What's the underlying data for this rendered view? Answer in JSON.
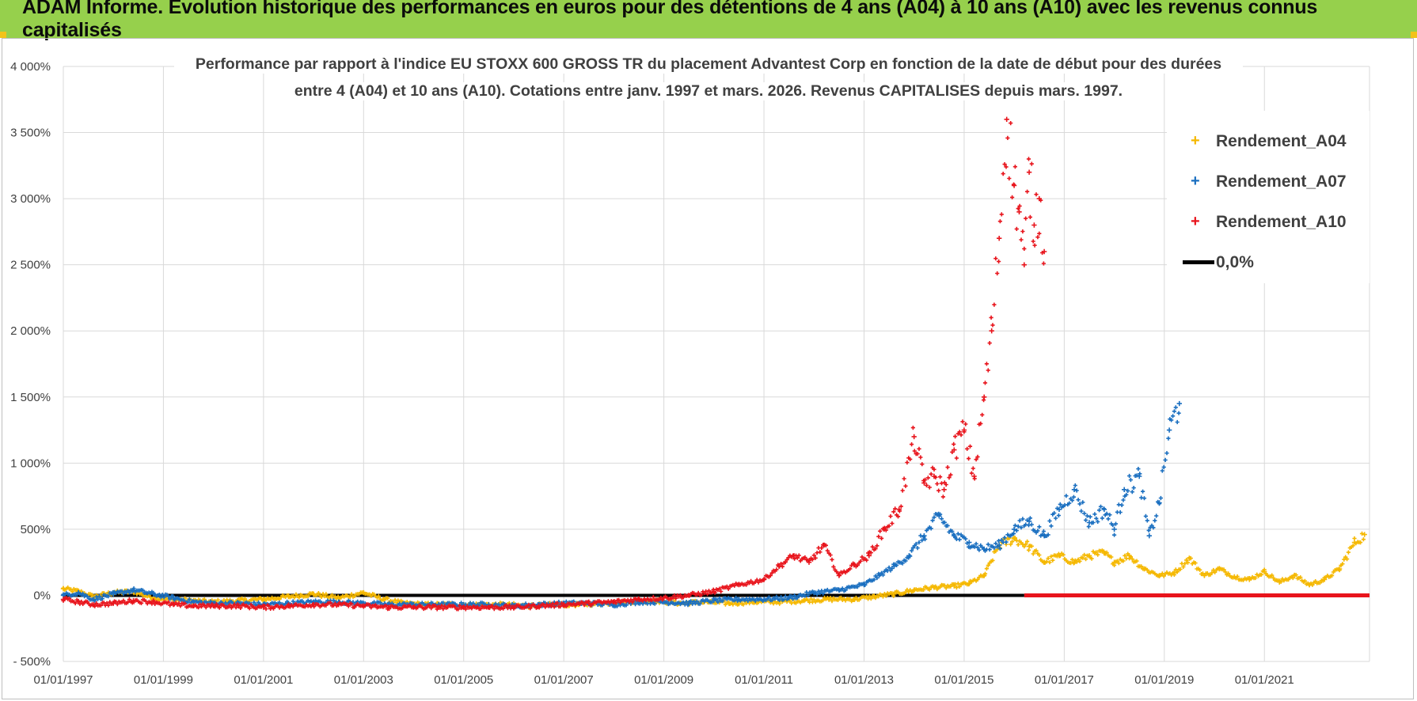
{
  "banner": {
    "title": "ADAM Informe. Evolution historique des performances en euros pour des détentions de 4 ans (A04) à 10 ans (A10) avec les revenus connus capitalisés"
  },
  "colors": {
    "banner_bg": "#96d04c",
    "A04": "#f5b800",
    "A07": "#1a6fc0",
    "A10": "#e8141c",
    "zero_line": "#000000",
    "grid": "#d9d9d9",
    "axis_text": "#404040"
  },
  "chart_data": {
    "type": "scatter",
    "title_line_1": "Performance par rapport à l'indice EU STOXX 600 GROSS TR  du placement Advantest Corp en fonction de la date de début pour des durées",
    "title_line_2": "entre 4 (A04) et 10 ans (A10).  Cotations entre janv. 1997 et mars. 2026.  Revenus CAPITALISES depuis mars. 1997.",
    "xlabel": "",
    "ylabel": "",
    "x_range": [
      1997.0,
      2023.1
    ],
    "ylim": [
      -500,
      4000
    ],
    "y_ticks": [
      -500,
      0,
      500,
      1000,
      1500,
      2000,
      2500,
      3000,
      3500,
      4000
    ],
    "y_tick_labels": [
      "- 500%",
      "0%",
      "500%",
      "1 000%",
      "1 500%",
      "2 000%",
      "2 500%",
      "3 000%",
      "3 500%",
      "4 000%"
    ],
    "x_ticks": [
      1997,
      1999,
      2001,
      2003,
      2005,
      2007,
      2009,
      2011,
      2013,
      2015,
      2017,
      2019,
      2021
    ],
    "x_tick_labels": [
      "01/01/1997",
      "01/01/1999",
      "01/01/2001",
      "01/01/2003",
      "01/01/2005",
      "01/01/2007",
      "01/01/2009",
      "01/01/2011",
      "01/01/2013",
      "01/01/2015",
      "01/01/2017",
      "01/01/2019",
      "01/01/2021"
    ],
    "grid": true,
    "legend_position": "top-right",
    "series": [
      {
        "name": "Rendement_A04",
        "marker": "plus",
        "x": [
          1997.0,
          1997.3,
          1997.6,
          1998.0,
          1998.4,
          1998.8,
          1999.2,
          1999.6,
          2000.0,
          2000.5,
          2001.0,
          2001.5,
          2002.0,
          2002.5,
          2003.0,
          2003.4,
          2003.8,
          2004.3,
          2004.8,
          2005.3,
          2005.8,
          2006.3,
          2006.8,
          2007.3,
          2007.8,
          2008.3,
          2008.8,
          2009.3,
          2009.8,
          2010.3,
          2010.8,
          2011.3,
          2011.8,
          2012.3,
          2012.8,
          2013.2,
          2013.6,
          2014.0,
          2014.4,
          2014.8,
          2015.1,
          2015.4,
          2015.7,
          2016.0,
          2016.3,
          2016.6,
          2016.9,
          2017.2,
          2017.5,
          2017.8,
          2018.0,
          2018.3,
          2018.6,
          2018.9,
          2019.2,
          2019.5,
          2019.8,
          2020.1,
          2020.4,
          2020.7,
          2021.0,
          2021.3,
          2021.6,
          2021.9,
          2022.2,
          2022.5,
          2022.8,
          2023.0
        ],
        "y": [
          50,
          30,
          -10,
          20,
          30,
          -20,
          -30,
          -40,
          -50,
          -40,
          -30,
          -10,
          10,
          -20,
          20,
          -30,
          -60,
          -70,
          -70,
          -70,
          -70,
          -80,
          -70,
          -70,
          -60,
          -50,
          -40,
          -60,
          -50,
          -60,
          -50,
          -50,
          -40,
          -30,
          -30,
          -10,
          10,
          40,
          60,
          70,
          90,
          150,
          380,
          430,
          370,
          250,
          300,
          250,
          300,
          320,
          250,
          300,
          200,
          150,
          170,
          280,
          150,
          200,
          140,
          120,
          180,
          100,
          150,
          80,
          120,
          200,
          400,
          460
        ]
      },
      {
        "name": "Rendement_A07",
        "marker": "plus",
        "x": [
          1997.0,
          1997.3,
          1997.6,
          1998.0,
          1998.4,
          1998.8,
          1999.2,
          1999.6,
          2000.0,
          2000.5,
          2001.0,
          2001.5,
          2002.0,
          2002.5,
          2003.0,
          2003.5,
          2004.0,
          2004.5,
          2005.0,
          2005.5,
          2006.0,
          2006.5,
          2007.0,
          2007.5,
          2008.0,
          2008.5,
          2009.0,
          2009.5,
          2010.0,
          2010.5,
          2011.0,
          2011.5,
          2012.0,
          2012.5,
          2013.0,
          2013.3,
          2013.6,
          2013.9,
          2014.2,
          2014.5,
          2014.8,
          2015.1,
          2015.4,
          2015.7,
          2016.0,
          2016.3,
          2016.6,
          2016.9,
          2017.2,
          2017.5,
          2017.8,
          2018.0,
          2018.2,
          2018.5,
          2018.7,
          2018.9,
          2019.1,
          2019.3
        ],
        "y": [
          0,
          20,
          -30,
          10,
          40,
          10,
          -20,
          -50,
          -60,
          -60,
          -70,
          -60,
          -50,
          -50,
          -60,
          -70,
          -70,
          -70,
          -70,
          -70,
          -80,
          -70,
          -60,
          -60,
          -70,
          -50,
          -50,
          -60,
          -40,
          -30,
          -30,
          -20,
          20,
          40,
          80,
          150,
          220,
          300,
          450,
          600,
          450,
          400,
          350,
          380,
          500,
          560,
          450,
          650,
          800,
          550,
          650,
          500,
          800,
          900,
          450,
          700,
          1250,
          1450
        ]
      },
      {
        "name": "Rendement_A10",
        "marker": "plus",
        "x": [
          1997.0,
          1997.3,
          1997.6,
          1998.0,
          1998.4,
          1998.8,
          1999.2,
          1999.6,
          2000.0,
          2000.5,
          2001.0,
          2001.5,
          2002.0,
          2002.5,
          2003.0,
          2003.5,
          2004.0,
          2004.5,
          2005.0,
          2005.5,
          2006.0,
          2006.5,
          2007.0,
          2007.5,
          2008.0,
          2008.5,
          2009.0,
          2009.5,
          2010.0,
          2010.5,
          2011.0,
          2011.3,
          2011.6,
          2011.9,
          2012.2,
          2012.5,
          2012.8,
          2013.1,
          2013.4,
          2013.7,
          2014.0,
          2014.2,
          2014.4,
          2014.6,
          2014.8,
          2015.0,
          2015.2,
          2015.4,
          2015.55,
          2015.7,
          2015.85,
          2016.0,
          2016.1,
          2016.2,
          2016.3,
          2016.4,
          2016.5,
          2016.6
        ],
        "y": [
          -30,
          -50,
          -70,
          -60,
          -40,
          -50,
          -70,
          -80,
          -80,
          -80,
          -90,
          -80,
          -70,
          -70,
          -80,
          -90,
          -90,
          -90,
          -90,
          -90,
          -90,
          -80,
          -70,
          -60,
          -50,
          -30,
          -20,
          0,
          30,
          80,
          120,
          220,
          300,
          250,
          380,
          150,
          230,
          300,
          500,
          650,
          1200,
          850,
          900,
          800,
          1100,
          1250,
          900,
          1500,
          2000,
          2700,
          3600,
          3100,
          2900,
          2500,
          3200,
          2800,
          3000,
          2600
        ]
      }
    ],
    "reference_lines": [
      {
        "name": "0,0%",
        "y": 0,
        "x_range": [
          1997.0,
          2016.2
        ]
      }
    ],
    "tail_segment": {
      "series": "Rendement_A10",
      "y": 0,
      "x_range": [
        2016.2,
        2023.1
      ]
    }
  }
}
